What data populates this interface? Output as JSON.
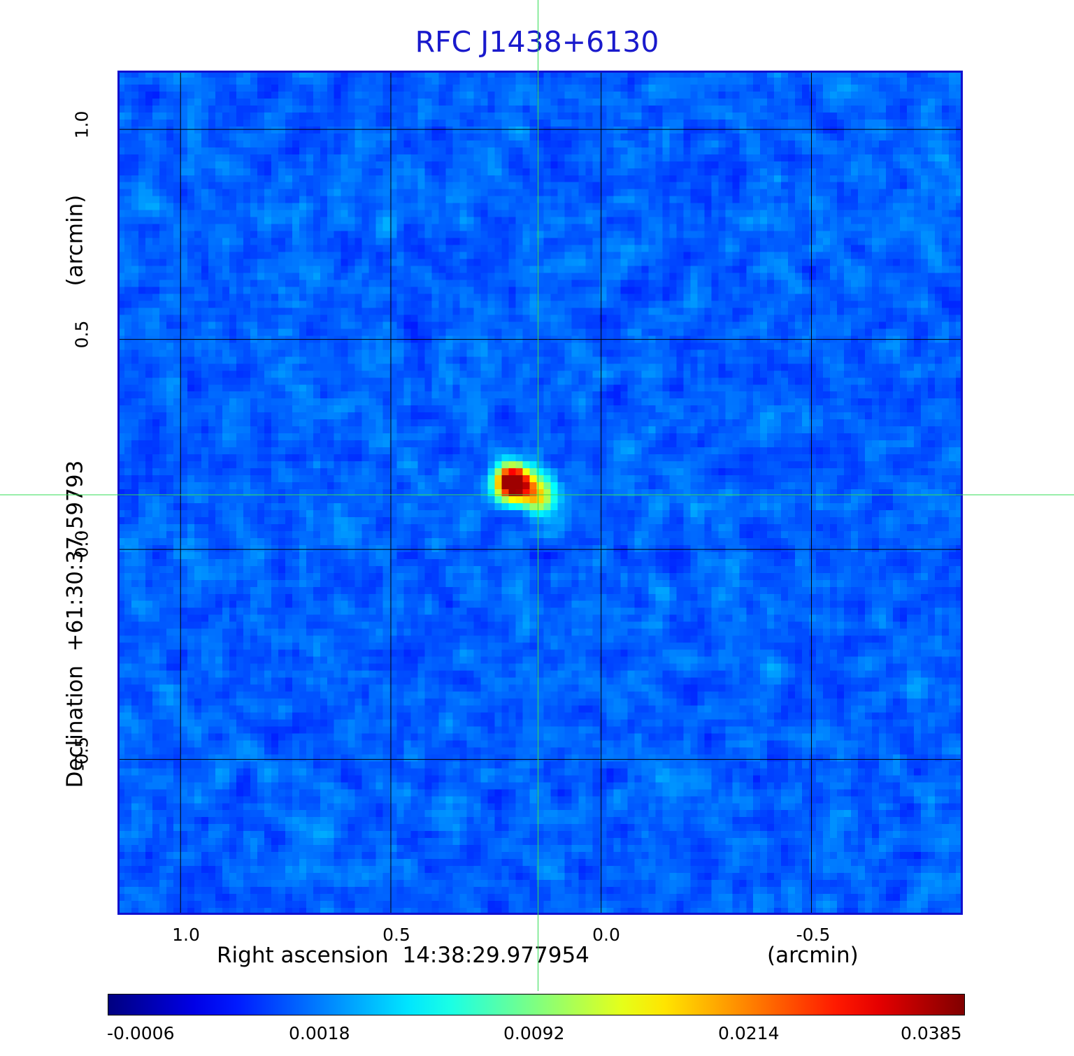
{
  "title": "RFC J1438+6130",
  "x_axis": {
    "label": "Right ascension  14:38:29.977954",
    "unit_label": "(arcmin)",
    "ticks": [
      {
        "value": 1.0,
        "label": "1.0"
      },
      {
        "value": 0.5,
        "label": "0.5"
      },
      {
        "value": 0.0,
        "label": "0.0"
      },
      {
        "value": -0.5,
        "label": "-0.5"
      }
    ],
    "range": [
      1.15,
      -0.86
    ]
  },
  "y_axis": {
    "label": "Declination  +61:30:37.59793",
    "unit_label": "(arcmin)",
    "ticks": [
      {
        "value": 1.0,
        "label": "1.0"
      },
      {
        "value": 0.5,
        "label": "0.5"
      },
      {
        "value": 0.0,
        "label": "0.0"
      },
      {
        "value": -0.5,
        "label": "-0.5"
      }
    ],
    "range": [
      -0.87,
      1.14
    ]
  },
  "colorbar": {
    "colormap": "jet",
    "tick_labels": [
      "-0.0006",
      "0.0018",
      "0.0092",
      "0.0214",
      "0.0385"
    ],
    "min": -0.0006,
    "max": 0.0385
  },
  "source": {
    "peak_offset_arcmin": {
      "ra": 0.21,
      "dec": 0.16
    },
    "peak_value": 0.0385,
    "secondary_offset_arcmin": {
      "ra": 0.15,
      "dec": 0.13
    }
  },
  "crosshair_offset_arcmin": {
    "ra": 0.15,
    "dec": 0.13
  },
  "colors": {
    "title": "#1a1acc",
    "frame": "#1010d0",
    "crosshair": "#33dd55",
    "grid": "#000000"
  }
}
